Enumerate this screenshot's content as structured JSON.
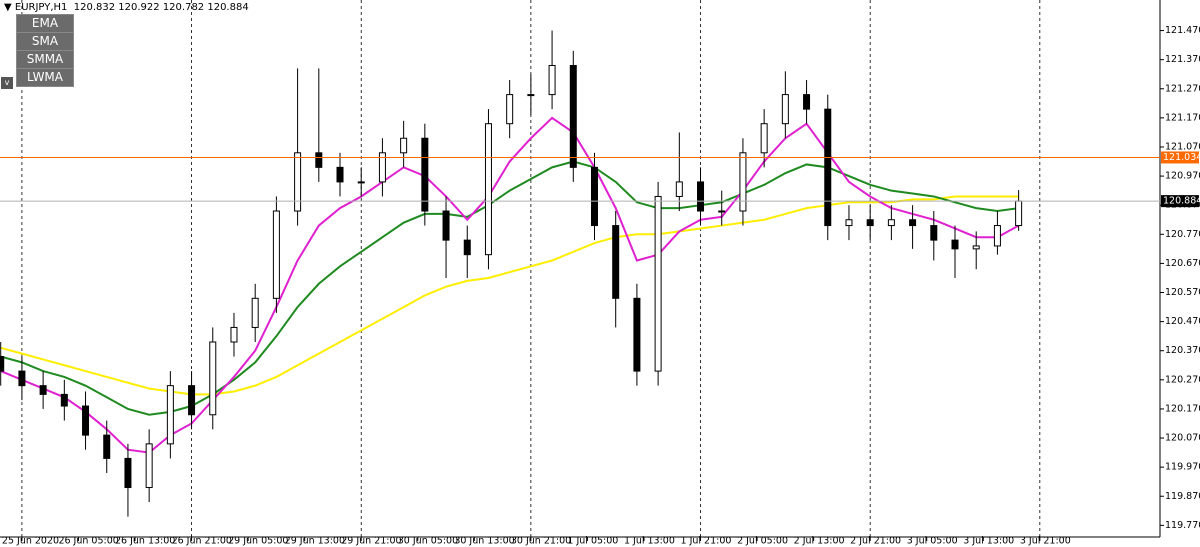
{
  "toolbar": {
    "symbol": "EURJPY,H1",
    "quote": "120.832 120.922 120.782 120.884",
    "buttons": [
      "EMA",
      "SMA",
      "SMMA",
      "LWMA"
    ],
    "toggle": "v"
  },
  "chart_data": {
    "type": "candlestick",
    "x": [
      -3,
      0,
      3,
      6,
      9,
      12,
      15,
      18,
      21,
      24,
      27,
      30,
      33,
      36,
      39,
      42,
      45,
      48,
      51,
      54,
      57,
      60,
      63,
      66,
      69,
      72,
      75,
      78,
      81,
      84,
      87,
      90,
      93,
      96,
      99,
      102,
      105,
      108,
      111,
      114,
      117,
      120,
      123,
      126,
      129,
      132,
      135,
      138,
      141
    ],
    "open": [
      120.35,
      120.3,
      120.25,
      120.22,
      120.18,
      120.08,
      120.0,
      119.9,
      120.05,
      120.25,
      120.15,
      120.4,
      120.45,
      120.55,
      120.85,
      121.05,
      121.0,
      120.95,
      120.95,
      121.05,
      121.1,
      120.85,
      120.75,
      120.7,
      121.15,
      121.25,
      121.25,
      121.35,
      121.0,
      120.8,
      120.55,
      120.3,
      120.9,
      120.95,
      120.85,
      120.85,
      121.05,
      121.15,
      121.25,
      121.2,
      120.8,
      120.82,
      120.8,
      120.82,
      120.8,
      120.75,
      120.72,
      120.73,
      120.8
    ],
    "high": [
      120.4,
      120.35,
      120.3,
      120.27,
      120.23,
      120.13,
      120.05,
      120.1,
      120.3,
      120.3,
      120.45,
      120.5,
      120.6,
      120.9,
      121.34,
      121.34,
      121.05,
      121.0,
      121.1,
      121.16,
      121.15,
      120.9,
      120.8,
      121.2,
      121.3,
      121.32,
      121.47,
      121.4,
      121.05,
      120.85,
      120.6,
      120.95,
      121.12,
      121.0,
      120.92,
      121.1,
      121.2,
      121.33,
      121.3,
      121.25,
      120.87,
      120.87,
      120.87,
      120.87,
      120.85,
      120.8,
      120.78,
      120.85,
      120.922
    ],
    "low": [
      120.25,
      120.2,
      120.17,
      120.13,
      120.03,
      119.95,
      119.8,
      119.85,
      120.0,
      120.1,
      120.1,
      120.35,
      120.4,
      120.5,
      120.8,
      120.95,
      120.9,
      120.9,
      120.9,
      121.0,
      120.8,
      120.62,
      120.62,
      120.65,
      121.1,
      121.18,
      121.2,
      120.95,
      120.75,
      120.45,
      120.25,
      120.25,
      120.85,
      120.8,
      120.8,
      120.8,
      121.0,
      121.1,
      121.15,
      120.75,
      120.75,
      120.75,
      120.75,
      120.72,
      120.68,
      120.62,
      120.65,
      120.7,
      120.782
    ],
    "close": [
      120.3,
      120.25,
      120.22,
      120.18,
      120.08,
      120.0,
      119.9,
      120.05,
      120.25,
      120.15,
      120.4,
      120.45,
      120.55,
      120.85,
      121.05,
      121.0,
      120.95,
      120.95,
      121.05,
      121.1,
      120.85,
      120.75,
      120.7,
      121.15,
      121.25,
      121.25,
      121.35,
      121.0,
      120.8,
      120.55,
      120.3,
      120.9,
      120.95,
      120.85,
      120.85,
      121.05,
      121.15,
      121.25,
      121.2,
      120.8,
      120.82,
      120.8,
      120.82,
      120.8,
      120.75,
      120.72,
      120.73,
      120.8,
      120.884
    ],
    "series": [
      {
        "color": "#ffee00",
        "values": [
          120.38,
          120.36,
          120.34,
          120.32,
          120.3,
          120.28,
          120.26,
          120.24,
          120.23,
          120.22,
          120.22,
          120.23,
          120.25,
          120.28,
          120.32,
          120.36,
          120.4,
          120.44,
          120.48,
          120.52,
          120.56,
          120.59,
          120.61,
          120.62,
          120.64,
          120.66,
          120.68,
          120.71,
          120.74,
          120.76,
          120.77,
          120.77,
          120.78,
          120.79,
          120.8,
          120.81,
          120.82,
          120.84,
          120.86,
          120.87,
          120.88,
          120.88,
          120.88,
          120.89,
          120.89,
          120.9,
          120.9,
          120.9,
          120.9
        ]
      },
      {
        "color": "#1f8a1f",
        "values": [
          120.35,
          120.33,
          120.3,
          120.28,
          120.25,
          120.21,
          120.17,
          120.15,
          120.16,
          120.18,
          120.22,
          120.27,
          120.33,
          120.42,
          120.52,
          120.6,
          120.66,
          120.71,
          120.76,
          120.81,
          120.84,
          120.84,
          120.83,
          120.87,
          120.92,
          120.96,
          121.0,
          121.02,
          121.0,
          120.95,
          120.88,
          120.86,
          120.86,
          120.87,
          120.88,
          120.91,
          120.94,
          120.98,
          121.01,
          121.0,
          120.97,
          120.94,
          120.92,
          120.91,
          120.9,
          120.88,
          120.86,
          120.85,
          120.86
        ]
      },
      {
        "color": "#e020d0",
        "values": [
          120.3,
          120.27,
          120.24,
          120.21,
          120.16,
          120.1,
          120.03,
          120.02,
          120.08,
          120.12,
          120.2,
          120.28,
          120.37,
          120.52,
          120.68,
          120.8,
          120.86,
          120.9,
          120.95,
          121.0,
          120.97,
          120.9,
          120.82,
          120.9,
          121.02,
          121.1,
          121.17,
          121.12,
          121.0,
          120.86,
          120.68,
          120.7,
          120.78,
          120.82,
          120.83,
          120.92,
          121.02,
          121.1,
          121.15,
          121.05,
          120.95,
          120.9,
          120.86,
          120.84,
          120.82,
          120.79,
          120.76,
          120.76,
          120.8
        ]
      }
    ],
    "xlim": [
      -3.1,
      161
    ],
    "xticks": [
      {
        "value": 0,
        "label": "25 Jun 2020"
      },
      {
        "value": 8,
        "label": "26 Jun 05:00"
      },
      {
        "value": 16,
        "label": "26 Jun 13:00"
      },
      {
        "value": 24,
        "label": "26 Jun 21:00"
      },
      {
        "value": 32,
        "label": "29 Jun 05:00"
      },
      {
        "value": 40,
        "label": "29 Jun 13:00"
      },
      {
        "value": 48,
        "label": "29 Jun 21:00"
      },
      {
        "value": 56,
        "label": "30 Jun 05:00"
      },
      {
        "value": 64,
        "label": "30 Jun 13:00"
      },
      {
        "value": 72,
        "label": "30 Jun 21:00"
      },
      {
        "value": 80,
        "label": "1 Jul 05:00"
      },
      {
        "value": 88,
        "label": "1 Jul 13:00"
      },
      {
        "value": 96,
        "label": "1 Jul 21:00"
      },
      {
        "value": 104,
        "label": "2 Jul 05:00"
      },
      {
        "value": 112,
        "label": "2 Jul 13:00"
      },
      {
        "value": 120,
        "label": "2 Jul 21:00"
      },
      {
        "value": 128,
        "label": "3 Jul 05:00"
      },
      {
        "value": 136,
        "label": "3 Jul 13:00"
      },
      {
        "value": 144,
        "label": "3 Jul 21:00"
      }
    ],
    "ylim": [
      119.73,
      121.575
    ],
    "yticks": [
      {
        "value": 121.47,
        "label": "121.470"
      },
      {
        "value": 121.37,
        "label": "121.370"
      },
      {
        "value": 121.27,
        "label": "121.270"
      },
      {
        "value": 121.17,
        "label": "121.170"
      },
      {
        "value": 121.07,
        "label": "121.070"
      },
      {
        "value": 120.97,
        "label": "120.970"
      },
      {
        "value": 120.87,
        "label": "120.870"
      },
      {
        "value": 120.77,
        "label": "120.770"
      },
      {
        "value": 120.67,
        "label": "120.670"
      },
      {
        "value": 120.57,
        "label": "120.570"
      },
      {
        "value": 120.47,
        "label": "120.470"
      },
      {
        "value": 120.37,
        "label": "120.370"
      },
      {
        "value": 120.27,
        "label": "120.270"
      },
      {
        "value": 120.17,
        "label": "120.170"
      },
      {
        "value": 120.07,
        "label": "120.070"
      },
      {
        "value": 119.97,
        "label": "119.970"
      },
      {
        "value": 119.87,
        "label": "119.870"
      },
      {
        "value": 119.77,
        "label": "119.770"
      }
    ],
    "price_lines": [
      {
        "value": 121.034,
        "label": "121.034",
        "color": "#ff6a00"
      },
      {
        "value": 120.884,
        "label": "120.884",
        "color": "#b0b0b0"
      }
    ],
    "bull_color": "#ffffff",
    "bear_color": "#000000"
  }
}
